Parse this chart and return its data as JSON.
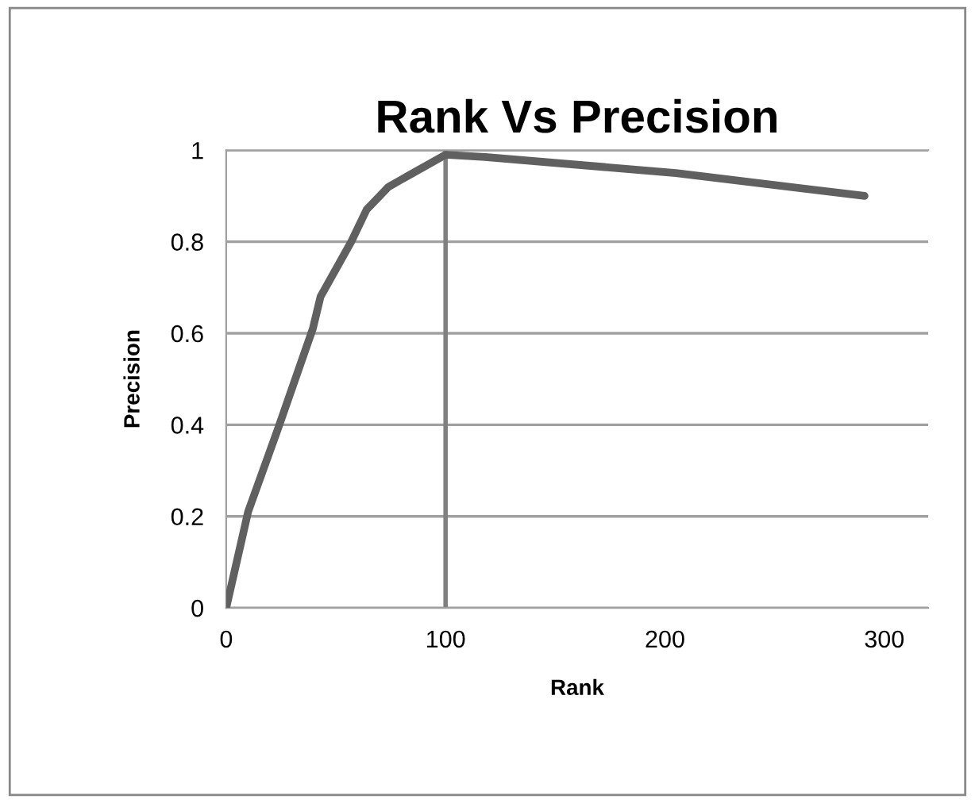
{
  "chart_data": {
    "type": "line",
    "title": "Rank Vs Precision",
    "xlabel": "Rank",
    "ylabel": "Precision",
    "x": [
      0,
      10,
      23.5,
      39.5,
      43,
      57,
      64,
      74,
      100,
      118,
      205,
      291
    ],
    "series": [
      {
        "color": "#606060",
        "values": [
          0,
          0.21,
          0.39,
          0.61,
          0.68,
          0.8,
          0.87,
          0.92,
          0.99,
          0.985,
          0.95,
          0.9
        ]
      }
    ],
    "xlim": [
      0,
      320
    ],
    "xticks": [
      0,
      100,
      200,
      300
    ],
    "ylim": [
      0,
      1
    ],
    "yticks": [
      0,
      0.2,
      0.4,
      0.6,
      0.8,
      1
    ],
    "grid": "y",
    "legend": false,
    "marker": "none",
    "line_style": "solid",
    "ref_lines": [
      {
        "axis": "x",
        "value": 100,
        "color": "#808080"
      }
    ]
  }
}
